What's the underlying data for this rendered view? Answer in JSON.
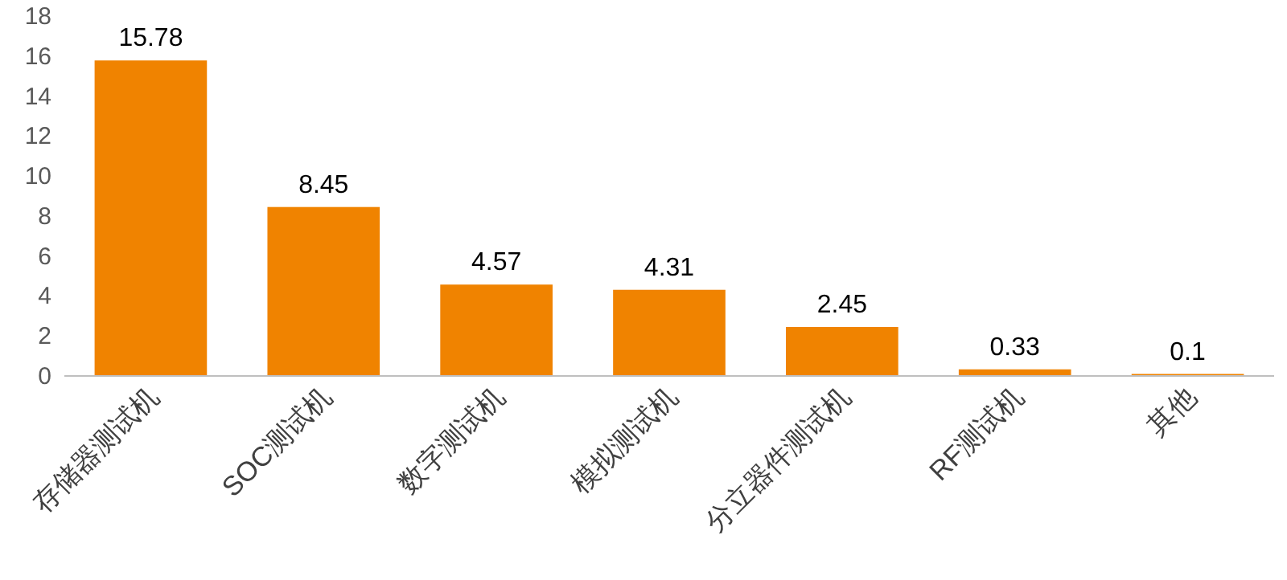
{
  "chart_data": {
    "type": "bar",
    "categories": [
      "存储器测试机",
      "SOC测试机",
      "数字测试机",
      "模拟测试机",
      "分立器件测试机",
      "RF测试机",
      "其他"
    ],
    "values": [
      15.78,
      8.45,
      4.57,
      4.31,
      2.45,
      0.33,
      0.1
    ],
    "color": "#f08300",
    "ylim": [
      0,
      18
    ],
    "yticks": [
      0,
      2,
      4,
      6,
      8,
      10,
      12,
      14,
      16,
      18
    ],
    "data_labels": true
  }
}
